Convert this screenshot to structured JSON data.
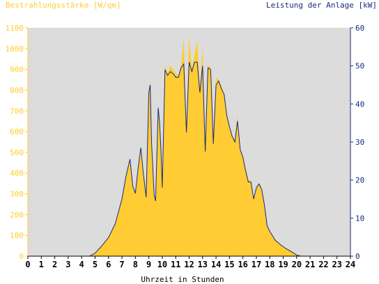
{
  "chart_data": {
    "type": "area",
    "left_axis_title": "Bestrahlungsstärke [W/qm]",
    "right_axis_title": "Leistung der Anlage [kW]",
    "xlabel": "Uhrzeit in Stunden",
    "xlim": [
      0,
      24
    ],
    "x_ticks": [
      "0",
      "1",
      "2",
      "3",
      "4",
      "5",
      "6",
      "7",
      "8",
      "9",
      "10",
      "11",
      "12",
      "13",
      "14",
      "15",
      "16",
      "17",
      "18",
      "19",
      "20",
      "21",
      "22",
      "23",
      "24"
    ],
    "left_ylim": [
      0,
      1100
    ],
    "left_y_ticks": [
      "0",
      "100",
      "200",
      "300",
      "400",
      "500",
      "600",
      "700",
      "800",
      "900",
      "1000",
      "1100"
    ],
    "right_ylim": [
      0,
      60
    ],
    "right_y_ticks": [
      "0",
      "10",
      "20",
      "30",
      "40",
      "50",
      "60"
    ],
    "grid": false,
    "colors": {
      "irradiance": "#ffcc33",
      "power": "#1a2a7a",
      "plot_bg": "#dcdcdc"
    },
    "series": [
      {
        "name": "Bestrahlungsstärke",
        "axis": "left",
        "style": "area",
        "points": [
          [
            0,
            0
          ],
          [
            4.6,
            0
          ],
          [
            5.0,
            15
          ],
          [
            5.5,
            50
          ],
          [
            6.0,
            90
          ],
          [
            6.5,
            160
          ],
          [
            7.0,
            280
          ],
          [
            7.3,
            390
          ],
          [
            7.6,
            460
          ],
          [
            7.8,
            340
          ],
          [
            8.0,
            310
          ],
          [
            8.2,
            420
          ],
          [
            8.4,
            520
          ],
          [
            8.6,
            400
          ],
          [
            8.8,
            290
          ],
          [
            9.0,
            780
          ],
          [
            9.1,
            830
          ],
          [
            9.2,
            560
          ],
          [
            9.4,
            300
          ],
          [
            9.5,
            270
          ],
          [
            9.7,
            700
          ],
          [
            9.8,
            640
          ],
          [
            9.9,
            520
          ],
          [
            10.0,
            330
          ],
          [
            10.2,
            920
          ],
          [
            10.4,
            880
          ],
          [
            10.6,
            920
          ],
          [
            10.8,
            900
          ],
          [
            11.0,
            880
          ],
          [
            11.2,
            870
          ],
          [
            11.4,
            920
          ],
          [
            11.6,
            1050
          ],
          [
            11.8,
            600
          ],
          [
            12.0,
            1060
          ],
          [
            12.2,
            900
          ],
          [
            12.4,
            970
          ],
          [
            12.6,
            1040
          ],
          [
            12.8,
            800
          ],
          [
            13.0,
            1010
          ],
          [
            13.2,
            550
          ],
          [
            13.4,
            920
          ],
          [
            13.6,
            910
          ],
          [
            13.8,
            550
          ],
          [
            14.0,
            860
          ],
          [
            14.2,
            850
          ],
          [
            14.4,
            820
          ],
          [
            14.6,
            780
          ],
          [
            14.8,
            680
          ],
          [
            15.0,
            620
          ],
          [
            15.2,
            580
          ],
          [
            15.4,
            560
          ],
          [
            15.6,
            680
          ],
          [
            15.8,
            520
          ],
          [
            16.0,
            480
          ],
          [
            16.2,
            420
          ],
          [
            16.4,
            370
          ],
          [
            16.6,
            360
          ],
          [
            16.8,
            280
          ],
          [
            17.0,
            330
          ],
          [
            17.2,
            350
          ],
          [
            17.4,
            320
          ],
          [
            17.6,
            250
          ],
          [
            17.8,
            150
          ],
          [
            18.0,
            120
          ],
          [
            18.4,
            80
          ],
          [
            18.8,
            55
          ],
          [
            19.2,
            40
          ],
          [
            19.6,
            25
          ],
          [
            20.0,
            8
          ],
          [
            20.3,
            0
          ],
          [
            24,
            0
          ]
        ]
      },
      {
        "name": "Leistung der Anlage",
        "axis": "right",
        "style": "line",
        "points": [
          [
            0,
            0
          ],
          [
            4.6,
            0
          ],
          [
            5.0,
            0.8
          ],
          [
            5.5,
            2.7
          ],
          [
            6.0,
            4.9
          ],
          [
            6.5,
            8.5
          ],
          [
            7.0,
            15
          ],
          [
            7.3,
            21
          ],
          [
            7.6,
            25.5
          ],
          [
            7.8,
            18.5
          ],
          [
            8.0,
            16.5
          ],
          [
            8.2,
            23
          ],
          [
            8.4,
            28.5
          ],
          [
            8.6,
            21.5
          ],
          [
            8.8,
            15.5
          ],
          [
            9.0,
            43
          ],
          [
            9.1,
            45
          ],
          [
            9.2,
            30
          ],
          [
            9.4,
            16
          ],
          [
            9.5,
            14.5
          ],
          [
            9.7,
            39
          ],
          [
            9.8,
            35
          ],
          [
            9.9,
            28
          ],
          [
            10.0,
            18
          ],
          [
            10.2,
            49
          ],
          [
            10.4,
            47.5
          ],
          [
            10.6,
            48.5
          ],
          [
            10.8,
            48
          ],
          [
            11.0,
            47
          ],
          [
            11.2,
            47
          ],
          [
            11.4,
            49.5
          ],
          [
            11.6,
            50.5
          ],
          [
            11.8,
            32.5
          ],
          [
            12.0,
            51
          ],
          [
            12.2,
            48.5
          ],
          [
            12.4,
            51
          ],
          [
            12.6,
            51
          ],
          [
            12.8,
            43
          ],
          [
            13.0,
            50
          ],
          [
            13.2,
            27.5
          ],
          [
            13.4,
            49.5
          ],
          [
            13.6,
            49
          ],
          [
            13.8,
            29.5
          ],
          [
            14.0,
            45
          ],
          [
            14.2,
            46
          ],
          [
            14.4,
            44
          ],
          [
            14.6,
            42.5
          ],
          [
            14.8,
            37
          ],
          [
            15.0,
            34
          ],
          [
            15.2,
            31.5
          ],
          [
            15.4,
            30
          ],
          [
            15.6,
            35.5
          ],
          [
            15.8,
            28
          ],
          [
            16.0,
            26
          ],
          [
            16.2,
            22.5
          ],
          [
            16.4,
            19.5
          ],
          [
            16.6,
            19.5
          ],
          [
            16.8,
            15
          ],
          [
            17.0,
            18
          ],
          [
            17.2,
            19
          ],
          [
            17.4,
            17.5
          ],
          [
            17.6,
            13.5
          ],
          [
            17.8,
            8
          ],
          [
            18.0,
            6.5
          ],
          [
            18.4,
            4.2
          ],
          [
            18.8,
            3
          ],
          [
            19.2,
            2
          ],
          [
            19.6,
            1.2
          ],
          [
            20.0,
            0.3
          ],
          [
            20.3,
            0
          ],
          [
            24,
            0
          ]
        ]
      }
    ]
  }
}
